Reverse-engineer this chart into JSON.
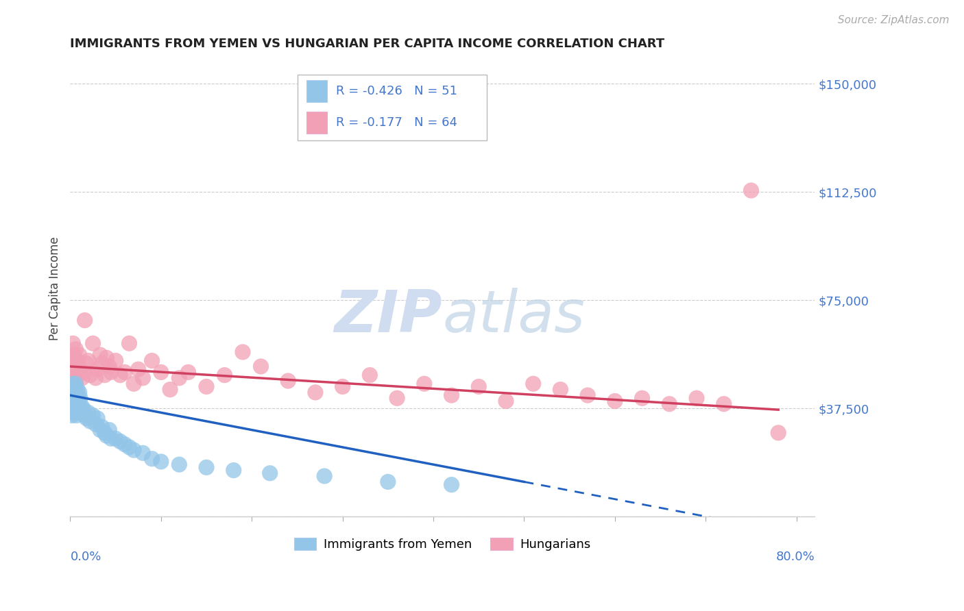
{
  "title": "IMMIGRANTS FROM YEMEN VS HUNGARIAN PER CAPITA INCOME CORRELATION CHART",
  "source": "Source: ZipAtlas.com",
  "ylabel": "Per Capita Income",
  "yticks": [
    0,
    37500,
    75000,
    112500,
    150000
  ],
  "ytick_labels": [
    "",
    "$37,500",
    "$75,000",
    "$112,500",
    "$150,000"
  ],
  "xlim": [
    0.0,
    0.82
  ],
  "ylim": [
    0,
    158000
  ],
  "legend1_label": "Immigrants from Yemen",
  "legend2_label": "Hungarians",
  "R1": -0.426,
  "N1": 51,
  "R2": -0.177,
  "N2": 64,
  "color_blue": "#92C5E8",
  "color_pink": "#F2A0B5",
  "color_line_blue": "#2060C0",
  "color_line_pink": "#D04060",
  "color_ytick": "#4477CC",
  "watermark_color": "#C8D8EE",
  "blue_x": [
    0.001,
    0.002,
    0.002,
    0.003,
    0.003,
    0.004,
    0.004,
    0.004,
    0.005,
    0.005,
    0.005,
    0.006,
    0.006,
    0.007,
    0.007,
    0.008,
    0.009,
    0.01,
    0.01,
    0.011,
    0.012,
    0.013,
    0.015,
    0.016,
    0.018,
    0.02,
    0.022,
    0.025,
    0.028,
    0.03,
    0.033,
    0.035,
    0.038,
    0.04,
    0.043,
    0.045,
    0.05,
    0.055,
    0.06,
    0.065,
    0.07,
    0.08,
    0.09,
    0.1,
    0.12,
    0.15,
    0.18,
    0.22,
    0.28,
    0.35,
    0.42
  ],
  "blue_y": [
    38000,
    44000,
    35000,
    46000,
    40000,
    45000,
    41000,
    36000,
    44000,
    42000,
    37000,
    46000,
    39000,
    43000,
    35000,
    44000,
    40000,
    43000,
    38000,
    41000,
    36000,
    38000,
    37000,
    35000,
    34000,
    36000,
    33000,
    35000,
    32000,
    34000,
    30000,
    31000,
    29000,
    28000,
    30000,
    27000,
    27000,
    26000,
    25000,
    24000,
    23000,
    22000,
    20000,
    19000,
    18000,
    17000,
    16000,
    15000,
    14000,
    12000,
    11000
  ],
  "pink_x": [
    0.001,
    0.002,
    0.003,
    0.003,
    0.004,
    0.005,
    0.005,
    0.006,
    0.006,
    0.007,
    0.008,
    0.009,
    0.01,
    0.011,
    0.013,
    0.015,
    0.016,
    0.018,
    0.02,
    0.022,
    0.025,
    0.028,
    0.03,
    0.033,
    0.035,
    0.038,
    0.04,
    0.043,
    0.045,
    0.05,
    0.055,
    0.06,
    0.065,
    0.07,
    0.075,
    0.08,
    0.09,
    0.1,
    0.11,
    0.12,
    0.13,
    0.15,
    0.17,
    0.19,
    0.21,
    0.24,
    0.27,
    0.3,
    0.33,
    0.36,
    0.39,
    0.42,
    0.45,
    0.48,
    0.51,
    0.54,
    0.57,
    0.6,
    0.63,
    0.66,
    0.69,
    0.72,
    0.75,
    0.78
  ],
  "pink_y": [
    55000,
    50000,
    60000,
    46000,
    56000,
    55000,
    48000,
    58000,
    47000,
    52000,
    54000,
    50000,
    56000,
    51000,
    48000,
    50000,
    68000,
    53000,
    54000,
    49000,
    60000,
    48000,
    51000,
    56000,
    53000,
    49000,
    55000,
    52000,
    50000,
    54000,
    49000,
    50000,
    60000,
    46000,
    51000,
    48000,
    54000,
    50000,
    44000,
    48000,
    50000,
    45000,
    49000,
    57000,
    52000,
    47000,
    43000,
    45000,
    49000,
    41000,
    46000,
    42000,
    45000,
    40000,
    46000,
    44000,
    42000,
    40000,
    41000,
    39000,
    41000,
    39000,
    113000,
    29000
  ]
}
